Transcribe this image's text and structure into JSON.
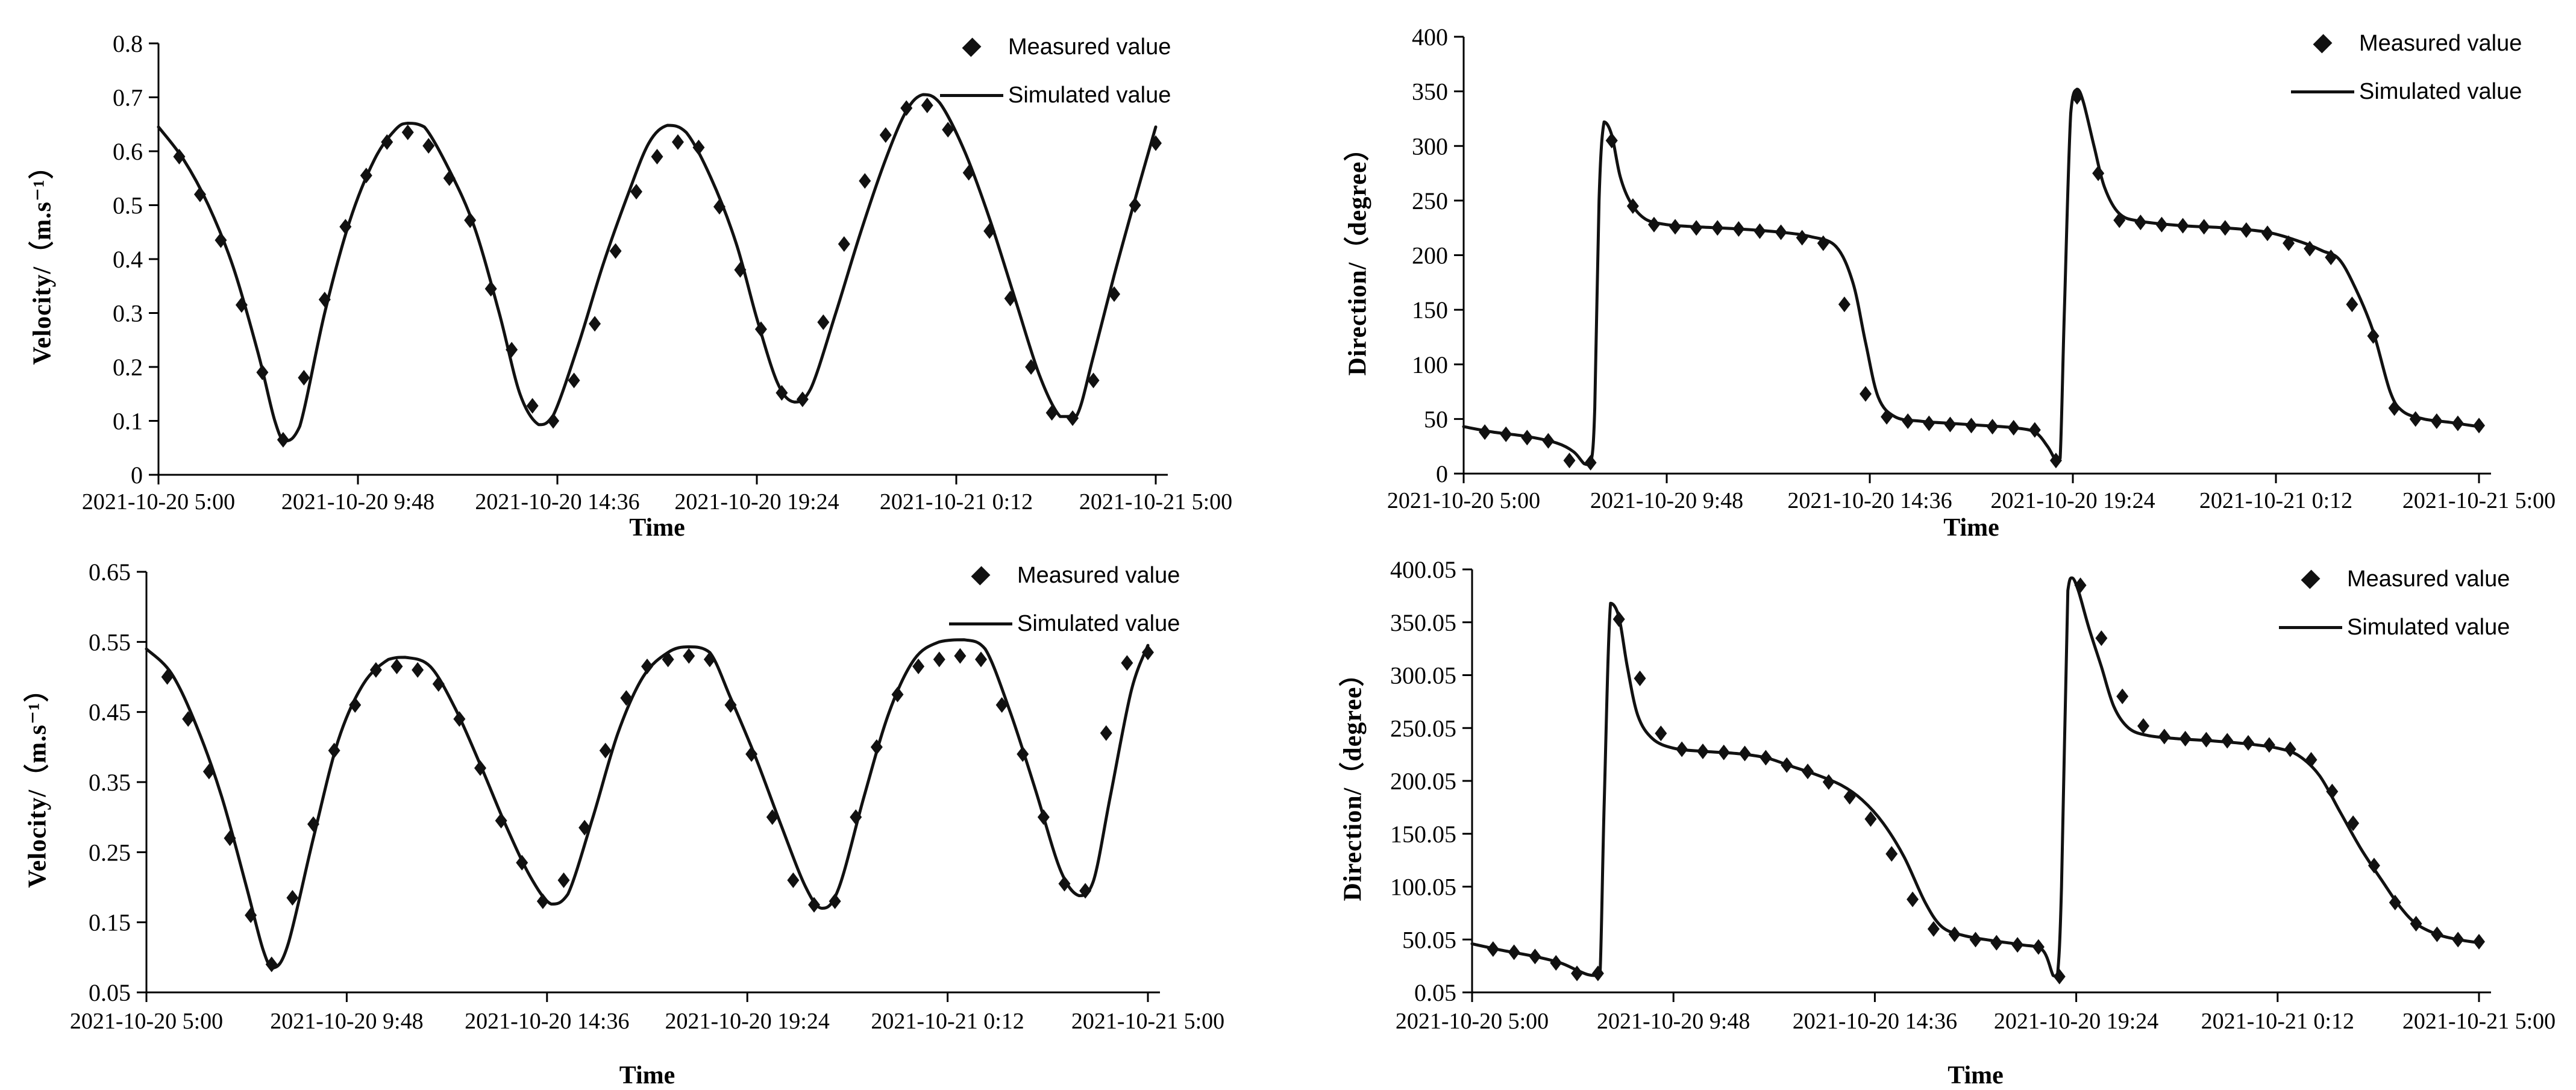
{
  "page": {
    "background": "#ffffff",
    "ink_color": "#000000"
  },
  "x_axis_shared": {
    "label": "Time",
    "tick_labels": [
      "2021-10-20 5:00",
      "2021-10-20 9:48",
      "2021-10-20 14:36",
      "2021-10-20 19:24",
      "2021-10-21 0:12",
      "2021-10-21 5:00"
    ]
  },
  "chart_data": [
    {
      "id": "velocity-upper",
      "type": "line",
      "position": "top-left",
      "xlabel": "Time",
      "ylabel": "Velocity/（m.s⁻¹）",
      "ylim": [
        0,
        0.8
      ],
      "yticks": [
        0,
        0.1,
        0.2,
        0.3,
        0.4,
        0.5,
        0.6,
        0.7,
        0.8
      ],
      "ytick_labels": [
        "0",
        "0.1",
        "0.2",
        "0.3",
        "0.4",
        "0.5",
        "0.6",
        "0.7",
        "0.8"
      ],
      "xtick_hours": [
        0,
        4.8,
        9.6,
        14.4,
        19.2,
        24
      ],
      "xtick_labels": [
        "2021-10-20 5:00",
        "2021-10-20 9:48",
        "2021-10-20 14:36",
        "2021-10-20 19:24",
        "2021-10-21 0:12",
        "2021-10-21 5:00"
      ],
      "legend": [
        {
          "label": "Measured value",
          "marker": "diamond"
        },
        {
          "label": "Simulated value",
          "marker": "line"
        }
      ],
      "line_color": "#111111",
      "marker_color": "#111111",
      "measured": {
        "t_start_hours": 0.5,
        "t_step_hours": 0.5,
        "values": [
          0.59,
          0.52,
          0.435,
          0.315,
          0.19,
          0.065,
          0.18,
          0.325,
          0.46,
          0.555,
          0.617,
          0.635,
          0.61,
          0.55,
          0.472,
          0.345,
          0.232,
          0.128,
          0.1,
          0.175,
          0.28,
          0.415,
          0.525,
          0.59,
          0.617,
          0.607,
          0.497,
          0.38,
          0.27,
          0.152,
          0.14,
          0.283,
          0.428,
          0.545,
          0.63,
          0.68,
          0.685,
          0.64,
          0.56,
          0.452,
          0.327,
          0.2,
          0.115,
          0.105,
          0.175,
          0.335,
          0.5,
          0.615
        ]
      },
      "simulated_points": [
        [
          0,
          0.645
        ],
        [
          0.6,
          0.585
        ],
        [
          1.2,
          0.5
        ],
        [
          1.8,
          0.385
        ],
        [
          2.4,
          0.225
        ],
        [
          2.8,
          0.1
        ],
        [
          3.05,
          0.063
        ],
        [
          3.4,
          0.09
        ],
        [
          4.0,
          0.3
        ],
        [
          4.6,
          0.47
        ],
        [
          5.2,
          0.585
        ],
        [
          5.7,
          0.64
        ],
        [
          6.0,
          0.652
        ],
        [
          6.4,
          0.645
        ],
        [
          7.0,
          0.565
        ],
        [
          7.6,
          0.46
        ],
        [
          8.2,
          0.3
        ],
        [
          8.7,
          0.15
        ],
        [
          9.15,
          0.093
        ],
        [
          9.5,
          0.11
        ],
        [
          10.1,
          0.24
        ],
        [
          10.7,
          0.39
        ],
        [
          11.3,
          0.52
        ],
        [
          11.8,
          0.615
        ],
        [
          12.25,
          0.648
        ],
        [
          12.7,
          0.635
        ],
        [
          13.3,
          0.55
        ],
        [
          13.9,
          0.43
        ],
        [
          14.4,
          0.29
        ],
        [
          14.9,
          0.17
        ],
        [
          15.3,
          0.135
        ],
        [
          15.7,
          0.16
        ],
        [
          16.3,
          0.3
        ],
        [
          16.9,
          0.45
        ],
        [
          17.5,
          0.585
        ],
        [
          18.0,
          0.675
        ],
        [
          18.4,
          0.705
        ],
        [
          18.8,
          0.69
        ],
        [
          19.4,
          0.6
        ],
        [
          20.0,
          0.475
        ],
        [
          20.6,
          0.33
        ],
        [
          21.2,
          0.185
        ],
        [
          21.7,
          0.108
        ],
        [
          22.1,
          0.11
        ],
        [
          22.5,
          0.22
        ],
        [
          23.0,
          0.37
        ],
        [
          23.5,
          0.51
        ],
        [
          24,
          0.645
        ]
      ]
    },
    {
      "id": "direction-upper",
      "type": "line",
      "position": "top-right",
      "xlabel": "Time",
      "ylabel": "Direction/（degree）",
      "ylim": [
        0,
        400
      ],
      "yticks": [
        0,
        50,
        100,
        150,
        200,
        250,
        300,
        350,
        400
      ],
      "ytick_labels": [
        "0",
        "50",
        "100",
        "150",
        "200",
        "250",
        "300",
        "350",
        "400"
      ],
      "xtick_hours": [
        0,
        4.8,
        9.6,
        14.4,
        19.2,
        24
      ],
      "xtick_labels": [
        "2021-10-20 5:00",
        "2021-10-20 9:48",
        "2021-10-20 14:36",
        "2021-10-20 19:24",
        "2021-10-21 0:12",
        "2021-10-21 5:00"
      ],
      "legend": [
        {
          "label": "Measured value",
          "marker": "diamond"
        },
        {
          "label": "Simulated value",
          "marker": "line"
        }
      ],
      "line_color": "#111111",
      "marker_color": "#111111",
      "measured": {
        "t_start_hours": 0.5,
        "t_step_hours": 0.5,
        "values": [
          38,
          36,
          33,
          30,
          12,
          10,
          305,
          245,
          228,
          226,
          225,
          225,
          224,
          222,
          221,
          216,
          211,
          155,
          73,
          52,
          48,
          46,
          45,
          44,
          43,
          42,
          40,
          12,
          345,
          275,
          232,
          230,
          228,
          227,
          226,
          225,
          223,
          220,
          211,
          206,
          198,
          155,
          126,
          60,
          50,
          48,
          46,
          44
        ]
      },
      "simulated_points": [
        [
          0,
          43
        ],
        [
          0.7,
          38
        ],
        [
          1.5,
          34
        ],
        [
          2.2,
          28
        ],
        [
          2.6,
          20
        ],
        [
          2.85,
          9
        ],
        [
          3.0,
          8
        ],
        [
          3.1,
          60
        ],
        [
          3.2,
          250
        ],
        [
          3.32,
          322
        ],
        [
          3.5,
          310
        ],
        [
          3.7,
          272
        ],
        [
          3.95,
          248
        ],
        [
          4.3,
          233
        ],
        [
          4.8,
          228
        ],
        [
          5.5,
          226
        ],
        [
          6.5,
          224
        ],
        [
          7.5,
          221
        ],
        [
          8.2,
          217
        ],
        [
          8.8,
          208
        ],
        [
          9.2,
          175
        ],
        [
          9.5,
          120
        ],
        [
          9.8,
          70
        ],
        [
          10.2,
          52
        ],
        [
          10.8,
          48
        ],
        [
          11.5,
          46
        ],
        [
          12.3,
          44
        ],
        [
          13.0,
          42
        ],
        [
          13.5,
          38
        ],
        [
          13.8,
          25
        ],
        [
          14.0,
          12
        ],
        [
          14.1,
          14
        ],
        [
          14.2,
          150
        ],
        [
          14.35,
          330
        ],
        [
          14.5,
          352
        ],
        [
          14.65,
          340
        ],
        [
          14.9,
          300
        ],
        [
          15.15,
          262
        ],
        [
          15.5,
          238
        ],
        [
          16.0,
          231
        ],
        [
          17.0,
          227
        ],
        [
          18.0,
          225
        ],
        [
          19.0,
          221
        ],
        [
          19.8,
          212
        ],
        [
          20.3,
          204
        ],
        [
          20.7,
          196
        ],
        [
          21.1,
          168
        ],
        [
          21.5,
          130
        ],
        [
          21.9,
          75
        ],
        [
          22.2,
          57
        ],
        [
          22.7,
          50
        ],
        [
          23.3,
          47
        ],
        [
          24,
          43
        ]
      ]
    },
    {
      "id": "velocity-lower",
      "type": "line",
      "position": "bottom-left",
      "xlabel": "Time",
      "ylabel": "Velocity/（m.s⁻¹）",
      "ylim": [
        0.05,
        0.65
      ],
      "yticks": [
        0.05,
        0.15,
        0.25,
        0.35,
        0.45,
        0.55,
        0.65
      ],
      "ytick_labels": [
        "0.05",
        "0.15",
        "0.25",
        "0.35",
        "0.45",
        "0.55",
        "0.65"
      ],
      "xtick_hours": [
        0,
        4.8,
        9.6,
        14.4,
        19.2,
        24
      ],
      "xtick_labels": [
        "2021-10-20 5:00",
        "2021-10-20 9:48",
        "2021-10-20 14:36",
        "2021-10-20 19:24",
        "2021-10-21 0:12",
        "2021-10-21 5:00"
      ],
      "legend": [
        {
          "label": "Measured value",
          "marker": "diamond"
        },
        {
          "label": "Simulated value",
          "marker": "line"
        }
      ],
      "line_color": "#111111",
      "marker_color": "#111111",
      "measured": {
        "t_start_hours": 0.5,
        "t_step_hours": 0.5,
        "values": [
          0.5,
          0.44,
          0.365,
          0.27,
          0.16,
          0.09,
          0.185,
          0.29,
          0.395,
          0.46,
          0.51,
          0.515,
          0.51,
          0.49,
          0.44,
          0.37,
          0.295,
          0.235,
          0.18,
          0.21,
          0.285,
          0.395,
          0.47,
          0.515,
          0.525,
          0.53,
          0.525,
          0.46,
          0.39,
          0.3,
          0.21,
          0.175,
          0.18,
          0.3,
          0.4,
          0.475,
          0.515,
          0.525,
          0.53,
          0.525,
          0.46,
          0.39,
          0.3,
          0.205,
          0.195,
          0.42,
          0.52,
          0.535
        ]
      },
      "simulated_points": [
        [
          0,
          0.54
        ],
        [
          0.6,
          0.505
        ],
        [
          1.2,
          0.43
        ],
        [
          1.8,
          0.33
        ],
        [
          2.4,
          0.2
        ],
        [
          2.8,
          0.11
        ],
        [
          3.05,
          0.085
        ],
        [
          3.4,
          0.12
        ],
        [
          4.0,
          0.27
        ],
        [
          4.6,
          0.41
        ],
        [
          5.2,
          0.49
        ],
        [
          5.8,
          0.525
        ],
        [
          6.2,
          0.528
        ],
        [
          6.8,
          0.515
        ],
        [
          7.4,
          0.455
        ],
        [
          8.0,
          0.375
        ],
        [
          8.6,
          0.29
        ],
        [
          9.2,
          0.215
        ],
        [
          9.7,
          0.176
        ],
        [
          10.1,
          0.19
        ],
        [
          10.7,
          0.3
        ],
        [
          11.3,
          0.42
        ],
        [
          11.9,
          0.5
        ],
        [
          12.5,
          0.535
        ],
        [
          13.0,
          0.543
        ],
        [
          13.5,
          0.535
        ],
        [
          14.0,
          0.47
        ],
        [
          14.6,
          0.385
        ],
        [
          15.2,
          0.29
        ],
        [
          15.8,
          0.2
        ],
        [
          16.2,
          0.17
        ],
        [
          16.6,
          0.2
        ],
        [
          17.2,
          0.33
        ],
        [
          17.8,
          0.45
        ],
        [
          18.4,
          0.525
        ],
        [
          19.0,
          0.55
        ],
        [
          19.6,
          0.553
        ],
        [
          20.1,
          0.54
        ],
        [
          20.7,
          0.45
        ],
        [
          21.3,
          0.34
        ],
        [
          21.9,
          0.225
        ],
        [
          22.35,
          0.188
        ],
        [
          22.7,
          0.21
        ],
        [
          23.1,
          0.33
        ],
        [
          23.6,
          0.48
        ],
        [
          24,
          0.545
        ]
      ]
    },
    {
      "id": "direction-lower",
      "type": "line",
      "position": "bottom-right",
      "xlabel": "Time",
      "ylabel": "Direction/（degree）",
      "ylim": [
        0.05,
        400.05
      ],
      "yticks": [
        0.05,
        50.05,
        100.05,
        150.05,
        200.05,
        250.05,
        300.05,
        350.05,
        400.05
      ],
      "ytick_labels": [
        "0.05",
        "50.05",
        "100.05",
        "150.05",
        "200.05",
        "250.05",
        "300.05",
        "350.05",
        "400.05"
      ],
      "xtick_hours": [
        0,
        4.8,
        9.6,
        14.4,
        19.2,
        24
      ],
      "xtick_labels": [
        "2021-10-20 5:00",
        "2021-10-20 9:48",
        "2021-10-20 14:36",
        "2021-10-20 19:24",
        "2021-10-21 0:12",
        "2021-10-21 5:00"
      ],
      "legend": [
        {
          "label": "Measured value",
          "marker": "diamond"
        },
        {
          "label": "Simulated value",
          "marker": "line"
        }
      ],
      "line_color": "#111111",
      "marker_color": "#111111",
      "measured": {
        "t_start_hours": 0.5,
        "t_step_hours": 0.5,
        "values": [
          41,
          38,
          34,
          28,
          18,
          18,
          353,
          297,
          245,
          230,
          228,
          227,
          226,
          222,
          215,
          209,
          199,
          185,
          164,
          131,
          88,
          60,
          55,
          50,
          47,
          45,
          43,
          15,
          385,
          335,
          280,
          252,
          242,
          240,
          239,
          238,
          236,
          234,
          230,
          220,
          190,
          160,
          120,
          85,
          65,
          55,
          50,
          48
        ]
      },
      "simulated_points": [
        [
          0,
          46
        ],
        [
          0.7,
          40
        ],
        [
          1.5,
          34
        ],
        [
          2.1,
          28
        ],
        [
          2.5,
          21
        ],
        [
          2.75,
          17
        ],
        [
          2.95,
          16
        ],
        [
          3.05,
          18
        ],
        [
          3.15,
          180
        ],
        [
          3.3,
          368
        ],
        [
          3.5,
          355
        ],
        [
          3.7,
          308
        ],
        [
          3.95,
          262
        ],
        [
          4.3,
          240
        ],
        [
          4.8,
          231
        ],
        [
          5.5,
          228
        ],
        [
          6.3,
          226
        ],
        [
          7.0,
          222
        ],
        [
          7.6,
          214
        ],
        [
          8.2,
          206
        ],
        [
          8.8,
          196
        ],
        [
          9.3,
          182
        ],
        [
          9.8,
          160
        ],
        [
          10.3,
          128
        ],
        [
          10.8,
          85
        ],
        [
          11.2,
          62
        ],
        [
          11.7,
          54
        ],
        [
          12.4,
          49
        ],
        [
          13.1,
          45
        ],
        [
          13.6,
          40
        ],
        [
          13.85,
          16
        ],
        [
          13.95,
          15
        ],
        [
          14.05,
          100
        ],
        [
          14.2,
          380
        ],
        [
          14.3,
          392
        ],
        [
          14.45,
          380
        ],
        [
          14.7,
          345
        ],
        [
          15.0,
          308
        ],
        [
          15.3,
          270
        ],
        [
          15.65,
          250
        ],
        [
          16.1,
          243
        ],
        [
          16.8,
          240
        ],
        [
          17.6,
          238
        ],
        [
          18.5,
          235
        ],
        [
          19.2,
          231
        ],
        [
          19.7,
          224
        ],
        [
          20.2,
          205
        ],
        [
          20.7,
          170
        ],
        [
          21.2,
          135
        ],
        [
          21.7,
          105
        ],
        [
          22.1,
          82
        ],
        [
          22.5,
          65
        ],
        [
          23.0,
          55
        ],
        [
          23.5,
          50
        ],
        [
          24,
          47
        ]
      ]
    }
  ]
}
